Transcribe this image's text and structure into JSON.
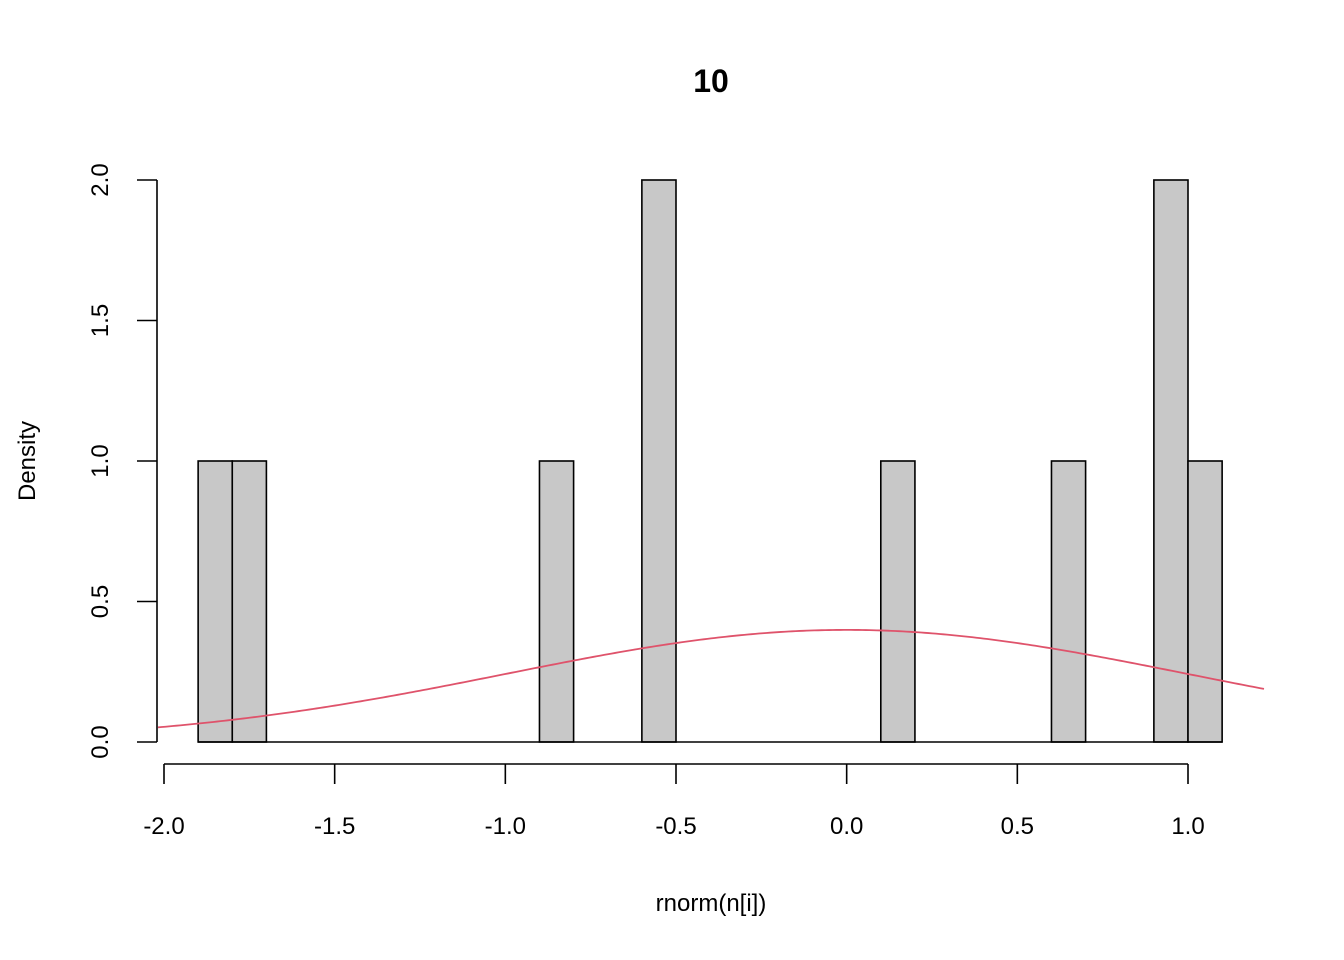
{
  "chart_data": {
    "type": "bar",
    "chart_kind": "histogram with density curve",
    "title": "10",
    "xlabel": "rnorm(n[i])",
    "ylabel": "Density",
    "xlim": [
      -2.0,
      1.2
    ],
    "ylim": [
      0.0,
      2.0
    ],
    "x_ticks": [
      "-2.0",
      "-1.5",
      "-1.0",
      "-0.5",
      "0.0",
      "0.5",
      "1.0"
    ],
    "y_ticks": [
      "0.0",
      "0.5",
      "1.0",
      "1.5",
      "2.0"
    ],
    "bin_width": 0.1,
    "bins": [
      {
        "from": -1.9,
        "to": -1.8,
        "density": 1.0
      },
      {
        "from": -1.8,
        "to": -1.7,
        "density": 1.0
      },
      {
        "from": -0.9,
        "to": -0.8,
        "density": 1.0
      },
      {
        "from": -0.6,
        "to": -0.5,
        "density": 2.0
      },
      {
        "from": 0.1,
        "to": 0.2,
        "density": 1.0
      },
      {
        "from": 0.6,
        "to": 0.7,
        "density": 1.0
      },
      {
        "from": 0.9,
        "to": 1.0,
        "density": 2.0
      },
      {
        "from": 1.0,
        "to": 1.1,
        "density": 1.0
      }
    ],
    "baseline_range": [
      -1.9,
      1.1
    ],
    "curve": {
      "function": "dnorm",
      "mean": 0,
      "sd": 1
    },
    "grid": false,
    "legend": "none",
    "colors": {
      "bar_fill": "#c8c8c8",
      "bar_stroke": "#000000",
      "curve": "#df536b"
    }
  }
}
